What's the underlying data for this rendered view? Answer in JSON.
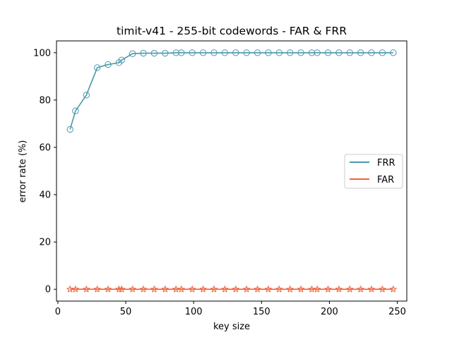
{
  "chart_data": {
    "type": "line",
    "title": "timit-v41 - 255-bit codewords - FAR & FRR",
    "xlabel": "key size",
    "ylabel": "error rate (%)",
    "xlim": [
      -1,
      257
    ],
    "ylim": [
      -5,
      105
    ],
    "x_ticks": [
      0,
      50,
      100,
      150,
      200,
      250
    ],
    "y_ticks": [
      0,
      20,
      40,
      60,
      80,
      100
    ],
    "grid": false,
    "legend_position": "center-right",
    "x": [
      9,
      13,
      21,
      29,
      37,
      45,
      47,
      55,
      63,
      71,
      79,
      87,
      91,
      99,
      107,
      115,
      123,
      131,
      139,
      147,
      155,
      163,
      171,
      179,
      187,
      191,
      199,
      207,
      215,
      223,
      231,
      239,
      247
    ],
    "series": [
      {
        "name": "FRR",
        "color": "#4a97ac",
        "marker": "circle",
        "values": [
          67.6,
          75.4,
          82.1,
          93.7,
          95.0,
          95.8,
          96.9,
          99.6,
          99.8,
          99.8,
          99.8,
          100,
          100,
          100,
          100,
          100,
          100,
          100,
          100,
          100,
          100,
          100,
          100,
          100,
          100,
          100,
          100,
          100,
          100,
          100,
          100,
          100,
          100
        ]
      },
      {
        "name": "FAR",
        "color": "#f0643c",
        "marker": "star",
        "values": [
          0,
          0,
          0,
          0,
          0,
          0,
          0,
          0,
          0,
          0,
          0,
          0,
          0,
          0,
          0,
          0,
          0,
          0,
          0,
          0,
          0,
          0,
          0,
          0,
          0,
          0,
          0,
          0,
          0,
          0,
          0,
          0,
          0
        ]
      }
    ]
  }
}
